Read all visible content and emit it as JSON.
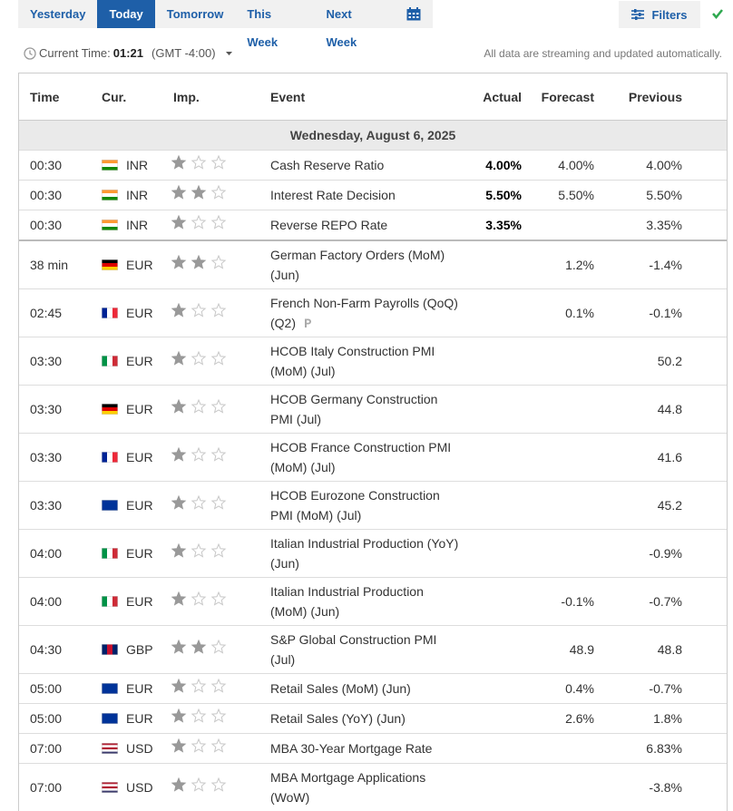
{
  "tabs": [
    "Yesterday",
    "Today",
    "Tomorrow",
    "This Week",
    "Next Week"
  ],
  "active_tab": 1,
  "filters": "Filters",
  "current_time": {
    "label": "Current Time:",
    "time": "01:21",
    "zone": "(GMT -4:00)"
  },
  "notice": "All data are streaming and updated automatically.",
  "table": {
    "columns": [
      "Time",
      "Cur.",
      "Imp.",
      "Event",
      "Actual",
      "Forecast",
      "Previous"
    ],
    "date": "Wednesday, August 6, 2025",
    "rows": [
      {
        "time": "00:30",
        "currency": "INR",
        "flag": {
          "colors": [
            "#ff9933",
            "#ffffff",
            "#138808"
          ],
          "stripes": "h"
        },
        "importance": 1,
        "event": "Cash Reserve Ratio",
        "actual": "4.00%",
        "forecast": "4.00%",
        "previous": "4.00%"
      },
      {
        "time": "00:30",
        "currency": "INR",
        "flag": {
          "colors": [
            "#ff9933",
            "#ffffff",
            "#138808"
          ],
          "stripes": "h"
        },
        "importance": 2,
        "event": "Interest Rate Decision",
        "actual": "5.50%",
        "forecast": "5.50%",
        "previous": "5.50%"
      },
      {
        "time": "00:30",
        "currency": "INR",
        "flag": {
          "colors": [
            "#ff9933",
            "#ffffff",
            "#138808"
          ],
          "stripes": "h"
        },
        "importance": 1,
        "event": "Reverse REPO Rate",
        "actual": "3.35%",
        "forecast": null,
        "previous": "3.35%"
      },
      {
        "time": "38 min",
        "currency": "EUR",
        "flag": {
          "colors": [
            "#000000",
            "#dd0000",
            "#ffce00"
          ],
          "stripes": "h"
        },
        "importance": 2,
        "event": "German Factory Orders (MoM) (Jun)",
        "actual": null,
        "forecast": "1.2%",
        "previous": "-1.4%"
      },
      {
        "time": "02:45",
        "currency": "EUR",
        "flag": {
          "colors": [
            "#002395",
            "#ffffff",
            "#ed2939"
          ],
          "stripes": "v"
        },
        "importance": 1,
        "event": "French Non-Farm Payrolls (QoQ) (Q2)",
        "preliminary": true,
        "actual": null,
        "forecast": "0.1%",
        "previous": "-0.1%"
      },
      {
        "time": "03:30",
        "currency": "EUR",
        "flag": {
          "colors": [
            "#009246",
            "#ffffff",
            "#ce2b37"
          ],
          "stripes": "v"
        },
        "importance": 1,
        "event": "HCOB Italy Construction PMI (MoM) (Jul)",
        "actual": null,
        "forecast": null,
        "previous": "50.2"
      },
      {
        "time": "03:30",
        "currency": "EUR",
        "flag": {
          "colors": [
            "#000000",
            "#dd0000",
            "#ffce00"
          ],
          "stripes": "h"
        },
        "importance": 1,
        "event": "HCOB Germany Construction PMI (Jul)",
        "actual": null,
        "forecast": null,
        "previous": "44.8"
      },
      {
        "time": "03:30",
        "currency": "EUR",
        "flag": {
          "colors": [
            "#002395",
            "#ffffff",
            "#ed2939"
          ],
          "stripes": "v"
        },
        "importance": 1,
        "event": "HCOB France Construction PMI (MoM) (Jul)",
        "actual": null,
        "forecast": null,
        "previous": "41.6"
      },
      {
        "time": "03:30",
        "currency": "EUR",
        "flag": {
          "colors": [
            "#003399"
          ],
          "stripes": "h"
        },
        "importance": 1,
        "event": "HCOB Eurozone Construction PMI (MoM) (Jul)",
        "actual": null,
        "forecast": null,
        "previous": "45.2"
      },
      {
        "time": "04:00",
        "currency": "EUR",
        "flag": {
          "colors": [
            "#009246",
            "#ffffff",
            "#ce2b37"
          ],
          "stripes": "v"
        },
        "importance": 1,
        "event": "Italian Industrial Production (YoY) (Jun)",
        "actual": null,
        "forecast": null,
        "previous": "-0.9%"
      },
      {
        "time": "04:00",
        "currency": "EUR",
        "flag": {
          "colors": [
            "#009246",
            "#ffffff",
            "#ce2b37"
          ],
          "stripes": "v"
        },
        "importance": 1,
        "event": "Italian Industrial Production (MoM) (Jun)",
        "actual": null,
        "forecast": "-0.1%",
        "previous": "-0.7%"
      },
      {
        "time": "04:30",
        "currency": "GBP",
        "flag": {
          "colors": [
            "#012169",
            "#c8102e",
            "#012169"
          ],
          "stripes": "v"
        },
        "importance": 2,
        "event": "S&P Global Construction PMI (Jul)",
        "actual": null,
        "forecast": "48.9",
        "previous": "48.8"
      },
      {
        "time": "05:00",
        "currency": "EUR",
        "flag": {
          "colors": [
            "#003399"
          ],
          "stripes": "h"
        },
        "importance": 1,
        "event": "Retail Sales (MoM) (Jun)",
        "actual": null,
        "forecast": "0.4%",
        "previous": "-0.7%"
      },
      {
        "time": "05:00",
        "currency": "EUR",
        "flag": {
          "colors": [
            "#003399"
          ],
          "stripes": "h"
        },
        "importance": 1,
        "event": "Retail Sales (YoY) (Jun)",
        "actual": null,
        "forecast": "2.6%",
        "previous": "1.8%"
      },
      {
        "time": "07:00",
        "currency": "USD",
        "flag": {
          "colors": [
            "#b22234",
            "#ffffff",
            "#b22234",
            "#ffffff",
            "#3c3b6e"
          ],
          "stripes": "h"
        },
        "importance": 1,
        "event": "MBA 30-Year Mortgage Rate",
        "actual": null,
        "forecast": null,
        "previous": "6.83%"
      },
      {
        "time": "07:00",
        "currency": "USD",
        "flag": {
          "colors": [
            "#b22234",
            "#ffffff",
            "#b22234",
            "#ffffff",
            "#3c3b6e"
          ],
          "stripes": "h"
        },
        "importance": 1,
        "event": "MBA Mortgage Applications (WoW)",
        "actual": null,
        "forecast": null,
        "previous": "-3.8%"
      }
    ]
  }
}
